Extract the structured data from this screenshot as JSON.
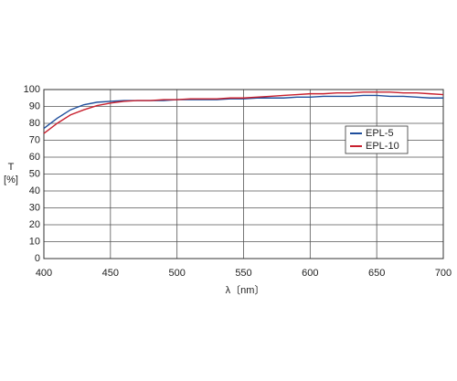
{
  "chart_data": {
    "type": "line",
    "ylabel": "T",
    "yunit": "[%]",
    "xlabel": "λ〔nm〕",
    "x": [
      400,
      410,
      420,
      430,
      440,
      450,
      460,
      470,
      480,
      490,
      500,
      510,
      520,
      530,
      540,
      550,
      560,
      570,
      580,
      590,
      600,
      610,
      620,
      630,
      640,
      650,
      660,
      670,
      680,
      690,
      700
    ],
    "series": [
      {
        "name": "EPL-5",
        "color": "#1f4e9c",
        "values": [
          77,
          83,
          88,
          91,
          92.5,
          93,
          93.5,
          93.5,
          93.5,
          93.5,
          94,
          94,
          94,
          94,
          94.5,
          94.5,
          95,
          95,
          95,
          95.5,
          95.5,
          96,
          96,
          96,
          96.5,
          96.5,
          96,
          96,
          95.5,
          95,
          95
        ]
      },
      {
        "name": "EPL-10",
        "color": "#c8202e",
        "values": [
          74,
          80,
          85,
          88,
          90.5,
          92,
          93,
          93.5,
          93.5,
          94,
          94,
          94.5,
          94.5,
          94.5,
          95,
          95,
          95.5,
          96,
          96.5,
          97,
          97.5,
          97.5,
          98,
          98,
          98.5,
          98.5,
          98.5,
          98,
          98,
          97.5,
          97
        ]
      }
    ],
    "xlim": [
      400,
      700
    ],
    "xticks": [
      400,
      450,
      500,
      550,
      600,
      650,
      700
    ],
    "ylim": [
      0,
      100
    ],
    "yticks": [
      0,
      10,
      20,
      30,
      40,
      50,
      60,
      70,
      80,
      90,
      100
    ],
    "grid": true
  }
}
